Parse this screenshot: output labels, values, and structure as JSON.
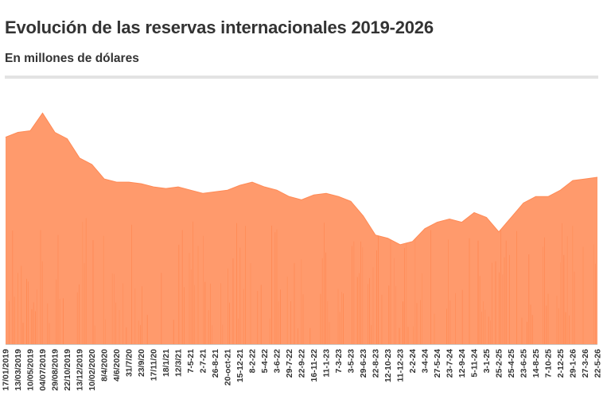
{
  "header": {
    "title": "Evolución de las reservas internacionales 2019-2026",
    "subtitle": "En millones de dólares"
  },
  "colors": {
    "area": "#ff9a6c",
    "area_dark": "#ff7a3d",
    "divider": "#e3e3e3",
    "text": "#333333"
  },
  "chart_data": {
    "type": "area",
    "title": "Evolución de las reservas internacionales 2019-2026",
    "subtitle": "En millones de dólares",
    "xlabel": "",
    "ylabel": "",
    "grid": false,
    "legend": "none",
    "ylim": [
      0,
      80000
    ],
    "x_tick_labels": [
      "17/01/2019",
      "13/03/2019",
      "10/05/2019",
      "04/07/2019",
      "29/08/2019",
      "22/10/2019",
      "13/12/2019",
      "10/02/2020",
      "8/4/2020",
      "4/6/2020",
      "31/7/20",
      "23/9/20",
      "17/11/20",
      "18/1/21",
      "12/3/21",
      "7-5-21",
      "2-7-21",
      "26-8-21",
      "20-oct-21",
      "15-12-21",
      "8-2-22",
      "5-4-22",
      "3-6-22",
      "29-7-22",
      "22-9-22",
      "16-11-22",
      "11-1-23",
      "7-3-23",
      "3-5-23",
      "29-6-23",
      "22-8-23",
      "12-10-23",
      "11-12-23",
      "2-2-24",
      "3-4-24",
      "27-5-24",
      "23-7-24",
      "12-9-24",
      "5-11-24",
      "3-1-25",
      "25-2-25",
      "25-4-25",
      "23-6-25",
      "14-8-25",
      "7-10-25",
      "2-12-25",
      "29-1-26",
      "27-3-26",
      "22-5-26"
    ],
    "series": [
      {
        "values": [
          64500,
          66000,
          66500,
          72000,
          66000,
          64000,
          58000,
          56000,
          51500,
          50500,
          50500,
          50000,
          49000,
          48500,
          49000,
          48000,
          47000,
          47500,
          48000,
          49500,
          50500,
          49000,
          48000,
          46000,
          45000,
          46500,
          47000,
          46000,
          44500,
          40000,
          34000,
          33000,
          31000,
          32000,
          36000,
          38000,
          39000,
          38000,
          41000,
          39500,
          35000,
          39500,
          44000,
          46000,
          46000,
          48000,
          51000,
          51500,
          52000
        ]
      }
    ]
  }
}
